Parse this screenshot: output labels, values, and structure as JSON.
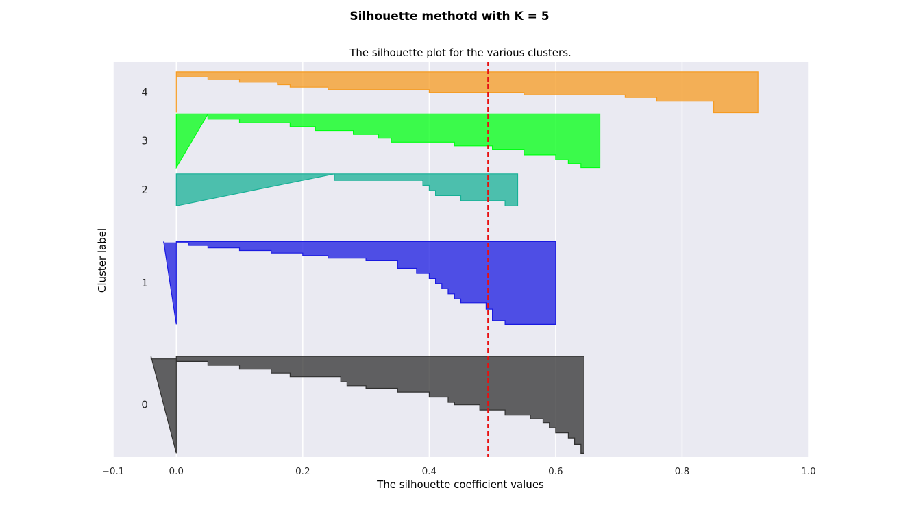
{
  "chart_data": {
    "type": "area",
    "suptitle": "Silhouette  methotd with K = 5",
    "title": "The silhouette plot for the various clusters.",
    "xlabel": "The silhouette coefficient values",
    "ylabel": "Cluster label",
    "xlim": [
      -0.1,
      1.0
    ],
    "xticks": [
      -0.1,
      0.0,
      0.2,
      0.4,
      0.6,
      0.8,
      1.0
    ],
    "xtick_labels": [
      "−0.1",
      "0.0",
      "0.2",
      "0.4",
      "0.6",
      "0.8",
      "1.0"
    ],
    "ylim": [
      0,
      310
    ],
    "grid": true,
    "average_silhouette": 0.493,
    "average_line_color": "#e81010",
    "clusters": [
      {
        "label": "0",
        "y_lower": 3,
        "color": "#303030",
        "profile": [
          [
            0,
            0.645
          ],
          [
            7,
            0.64
          ],
          [
            12,
            0.63
          ],
          [
            16,
            0.62
          ],
          [
            20,
            0.6
          ],
          [
            24,
            0.59
          ],
          [
            27,
            0.58
          ],
          [
            30,
            0.56
          ],
          [
            34,
            0.52
          ],
          [
            38,
            0.48
          ],
          [
            40,
            0.44
          ],
          [
            44,
            0.43
          ],
          [
            48,
            0.4
          ],
          [
            51,
            0.35
          ],
          [
            53,
            0.3
          ],
          [
            56,
            0.27
          ],
          [
            60,
            0.26
          ],
          [
            63,
            0.18
          ],
          [
            66,
            0.15
          ],
          [
            69,
            0.1
          ],
          [
            72,
            0.05
          ],
          [
            74,
            0.0
          ],
          [
            76,
            -0.04
          ]
        ]
      },
      {
        "label": "1",
        "y_lower": 104,
        "color": "#1a1ae0",
        "profile": [
          [
            0,
            0.6
          ],
          [
            3,
            0.52
          ],
          [
            12,
            0.5
          ],
          [
            17,
            0.49
          ],
          [
            20,
            0.45
          ],
          [
            24,
            0.44
          ],
          [
            28,
            0.43
          ],
          [
            32,
            0.42
          ],
          [
            36,
            0.41
          ],
          [
            40,
            0.4
          ],
          [
            44,
            0.38
          ],
          [
            50,
            0.35
          ],
          [
            52,
            0.3
          ],
          [
            54,
            0.24
          ],
          [
            56,
            0.2
          ],
          [
            58,
            0.15
          ],
          [
            60,
            0.1
          ],
          [
            62,
            0.05
          ],
          [
            64,
            0.02
          ],
          [
            65,
            -0.02
          ]
        ]
      },
      {
        "label": "2",
        "y_lower": 197,
        "color": "#17b096",
        "profile": [
          [
            0,
            0.54
          ],
          [
            4,
            0.52
          ],
          [
            8,
            0.45
          ],
          [
            12,
            0.41
          ],
          [
            16,
            0.4
          ],
          [
            20,
            0.39
          ],
          [
            25,
            0.25
          ]
        ]
      },
      {
        "label": "3",
        "y_lower": 227,
        "color": "#00ff13",
        "profile": [
          [
            0,
            0.67
          ],
          [
            3,
            0.64
          ],
          [
            6,
            0.62
          ],
          [
            10,
            0.6
          ],
          [
            14,
            0.55
          ],
          [
            17,
            0.5
          ],
          [
            20,
            0.44
          ],
          [
            23,
            0.34
          ],
          [
            26,
            0.32
          ],
          [
            29,
            0.28
          ],
          [
            32,
            0.22
          ],
          [
            35,
            0.18
          ],
          [
            38,
            0.1
          ],
          [
            42,
            0.05
          ]
        ]
      },
      {
        "label": "4",
        "y_lower": 270,
        "color": "#f59b22",
        "profile": [
          [
            0,
            0.92
          ],
          [
            9,
            0.85
          ],
          [
            12,
            0.76
          ],
          [
            14,
            0.71
          ],
          [
            16,
            0.55
          ],
          [
            18,
            0.4
          ],
          [
            20,
            0.24
          ],
          [
            22,
            0.18
          ],
          [
            24,
            0.16
          ],
          [
            26,
            0.1
          ],
          [
            28,
            0.05
          ],
          [
            32,
            0.0
          ]
        ]
      }
    ]
  }
}
